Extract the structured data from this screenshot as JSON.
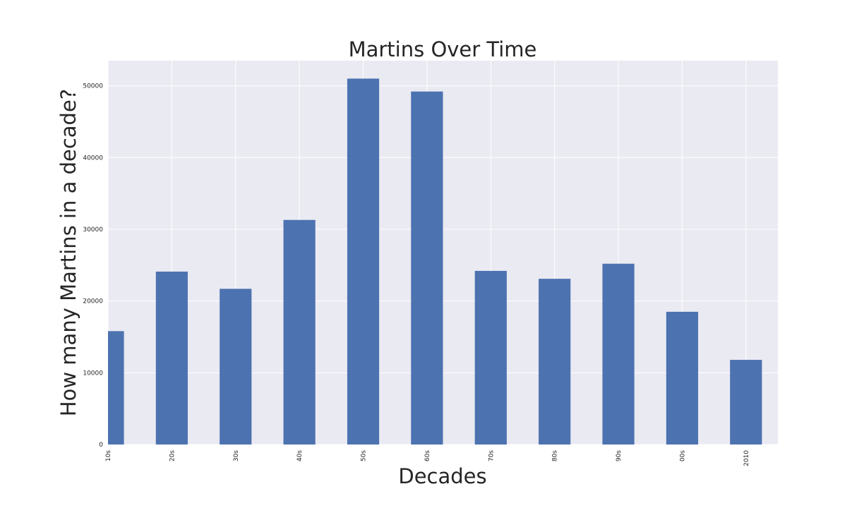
{
  "chart_data": {
    "type": "bar",
    "title": "Martins Over Time",
    "xlabel": "Decades",
    "ylabel": "How many Martins in a decade?",
    "categories": [
      "10s",
      "20s",
      "30s",
      "40s",
      "50s",
      "60s",
      "70s",
      "80s",
      "90s",
      "00s",
      "2010"
    ],
    "values": [
      15800,
      24100,
      21700,
      31300,
      51000,
      49200,
      24200,
      23100,
      25200,
      18500,
      11800
    ],
    "ylim": [
      0,
      53500
    ],
    "yticks": [
      0,
      10000,
      20000,
      30000,
      40000,
      50000
    ],
    "ytick_labels": [
      "0",
      "10000",
      "20000",
      "30000",
      "40000",
      "50000"
    ],
    "grid": true,
    "colors": {
      "bar": "#4c72b0",
      "background": "#eaeaf2",
      "grid": "#ffffff"
    }
  }
}
